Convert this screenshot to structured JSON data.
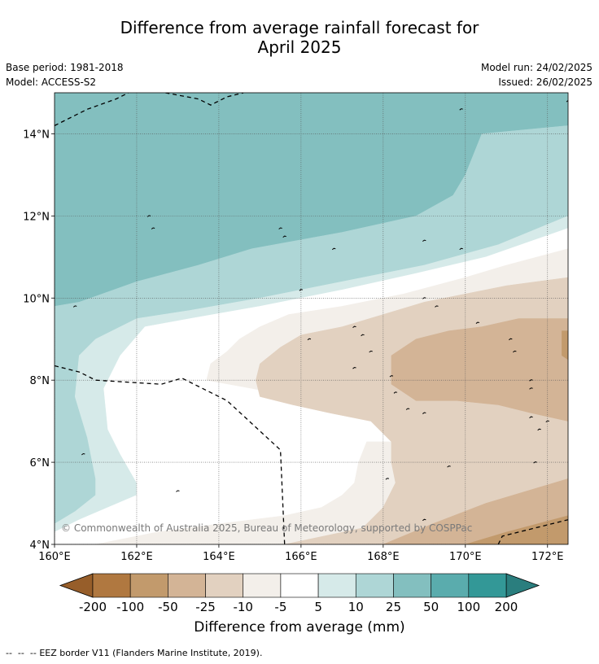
{
  "title_line1": "Difference from average rainfall forecast for",
  "title_line2": "April 2025",
  "base_period": "Base period: 1981-2018",
  "model": "Model: ACCESS-S2",
  "model_run": "Model run: 24/02/2025",
  "issued": "Issued: 26/02/2025",
  "copyright": "© Commonwealth of Australia 2025, Bureau of Meteorology, supported by COSPPac",
  "colorbar_title": "Difference from average (mm)",
  "footnote_dashes": "--  --  --",
  "footnote": "EEZ border V11 (Flanders Marine Institute, 2019).",
  "colors": {
    "lt_neg200": "#975e2a",
    "neg200_neg100": "#b07840",
    "neg100_neg50": "#c29a6c",
    "neg50_neg25": "#d3b496",
    "neg25_neg10": "#e2d1c0",
    "neg10_neg5": "#f3efea",
    "neg5_5": "#ffffff",
    "p5_10": "#d6eae9",
    "p10_25": "#aed6d6",
    "p25_50": "#83bfbf",
    "p50_100": "#5aacad",
    "p100_200": "#339897",
    "gt_200": "#2a7e7e"
  },
  "chart_data": {
    "type": "heatmap",
    "title": "Difference from average rainfall forecast for April 2025",
    "xlabel": "",
    "ylabel": "",
    "x_range": [
      160,
      172.5
    ],
    "y_range": [
      4,
      15
    ],
    "x_ticks": [
      160,
      162,
      164,
      166,
      168,
      170,
      172
    ],
    "x_tick_labels": [
      "160°E",
      "162°E",
      "164°E",
      "166°E",
      "168°E",
      "170°E",
      "172°E"
    ],
    "y_ticks": [
      4,
      6,
      8,
      10,
      12,
      14
    ],
    "y_tick_labels": [
      "4°N",
      "6°N",
      "8°N",
      "10°N",
      "12°N",
      "14°N"
    ],
    "grid": true,
    "colorbar": {
      "unit": "mm",
      "boundaries": [
        -200,
        -100,
        -50,
        -25,
        -10,
        -5,
        5,
        10,
        25,
        50,
        100,
        200
      ],
      "tick_labels": [
        "-200",
        "-100",
        "-50",
        "-25",
        "-10",
        "-5",
        "5",
        "10",
        "25",
        "50",
        "100",
        "200"
      ],
      "extend": "both"
    },
    "regions": [
      {
        "range": "25 to 50",
        "color_key": "p25_50",
        "points": [
          [
            160,
            15
          ],
          [
            172.5,
            15
          ],
          [
            172.5,
            14.2
          ],
          [
            170.4,
            14.0
          ],
          [
            170.0,
            13.0
          ],
          [
            169.7,
            12.5
          ],
          [
            168.8,
            12.0
          ],
          [
            167.0,
            11.6
          ],
          [
            164.8,
            11.2
          ],
          [
            163.5,
            10.8
          ],
          [
            162.0,
            10.4
          ],
          [
            160.6,
            9.9
          ],
          [
            160,
            9.8
          ]
        ]
      },
      {
        "range": "10 to 25",
        "color_key": "p10_25",
        "points": [
          [
            160,
            9.8
          ],
          [
            160.6,
            9.9
          ],
          [
            162.0,
            10.4
          ],
          [
            163.5,
            10.8
          ],
          [
            164.8,
            11.2
          ],
          [
            167.0,
            11.6
          ],
          [
            168.8,
            12.0
          ],
          [
            169.7,
            12.5
          ],
          [
            170.0,
            13.0
          ],
          [
            170.4,
            14.0
          ],
          [
            172.5,
            14.2
          ],
          [
            172.5,
            12.0
          ],
          [
            170.8,
            11.3
          ],
          [
            169.0,
            10.8
          ],
          [
            167.0,
            10.4
          ],
          [
            165.0,
            10.0
          ],
          [
            163.3,
            9.7
          ],
          [
            162.0,
            9.5
          ],
          [
            161.0,
            9.0
          ],
          [
            160.6,
            8.6
          ],
          [
            160.5,
            7.6
          ],
          [
            160.8,
            6.6
          ],
          [
            161.0,
            5.6
          ],
          [
            161.0,
            5.2
          ],
          [
            160.5,
            4.8
          ],
          [
            160,
            4.5
          ]
        ]
      },
      {
        "range": "5 to 10",
        "color_key": "p5_10",
        "points": [
          [
            160,
            4.5
          ],
          [
            160.5,
            4.8
          ],
          [
            161.0,
            5.2
          ],
          [
            161.0,
            5.6
          ],
          [
            160.8,
            6.6
          ],
          [
            160.5,
            7.6
          ],
          [
            160.6,
            8.6
          ],
          [
            161.0,
            9.0
          ],
          [
            162.0,
            9.5
          ],
          [
            163.3,
            9.7
          ],
          [
            165.0,
            10.0
          ],
          [
            167.0,
            10.4
          ],
          [
            169.0,
            10.8
          ],
          [
            170.8,
            11.3
          ],
          [
            172.5,
            12.0
          ],
          [
            172.5,
            11.7
          ],
          [
            170.5,
            11.0
          ],
          [
            168.8,
            10.6
          ],
          [
            167.0,
            10.2
          ],
          [
            165.0,
            9.8
          ],
          [
            163.3,
            9.5
          ],
          [
            162.2,
            9.3
          ],
          [
            161.6,
            8.6
          ],
          [
            161.2,
            7.8
          ],
          [
            161.3,
            6.8
          ],
          [
            161.6,
            6.2
          ],
          [
            162.0,
            5.5
          ],
          [
            162.0,
            5.2
          ],
          [
            161.3,
            4.9
          ],
          [
            160.6,
            4.6
          ],
          [
            160,
            4.3
          ]
        ]
      },
      {
        "range": "-5 to 5",
        "color_key": "neg5_5",
        "points": [
          [
            160,
            4.3
          ],
          [
            160.6,
            4.6
          ],
          [
            161.3,
            4.9
          ],
          [
            162.0,
            5.2
          ],
          [
            162.0,
            5.5
          ],
          [
            161.6,
            6.2
          ],
          [
            161.3,
            6.8
          ],
          [
            161.2,
            7.8
          ],
          [
            161.6,
            8.6
          ],
          [
            162.2,
            9.3
          ],
          [
            163.3,
            9.5
          ],
          [
            165.0,
            9.8
          ],
          [
            167.0,
            10.2
          ],
          [
            168.8,
            10.6
          ],
          [
            170.5,
            11.0
          ],
          [
            172.5,
            11.7
          ],
          [
            172.5,
            4
          ],
          [
            160,
            4
          ]
        ]
      },
      {
        "range": "-10 to -5",
        "color_key": "neg10_neg5",
        "points": [
          [
            161.0,
            4
          ],
          [
            162.5,
            4.3
          ],
          [
            164.0,
            4.5
          ],
          [
            165.6,
            4.7
          ],
          [
            166.5,
            4.9
          ],
          [
            167.0,
            5.2
          ],
          [
            167.3,
            5.5
          ],
          [
            167.4,
            6.0
          ],
          [
            167.6,
            6.5
          ],
          [
            168.2,
            6.5
          ],
          [
            168.3,
            6.8
          ],
          [
            167.7,
            7.1
          ],
          [
            166.6,
            7.4
          ],
          [
            165.8,
            7.6
          ],
          [
            164.8,
            7.8
          ],
          [
            163.7,
            8.0
          ],
          [
            163.8,
            8.4
          ],
          [
            164.2,
            8.7
          ],
          [
            164.5,
            9.0
          ],
          [
            165.0,
            9.3
          ],
          [
            165.7,
            9.6
          ],
          [
            167.0,
            9.8
          ],
          [
            168.5,
            10.1
          ],
          [
            170.0,
            10.5
          ],
          [
            171.0,
            10.8
          ],
          [
            172.5,
            11.2
          ],
          [
            172.5,
            4
          ]
        ]
      },
      {
        "range": "-25 to -10",
        "color_key": "neg25_neg10",
        "points": [
          [
            165.6,
            4
          ],
          [
            167.5,
            4.4
          ],
          [
            168.0,
            4.9
          ],
          [
            168.3,
            5.5
          ],
          [
            168.2,
            6.0
          ],
          [
            168.2,
            6.5
          ],
          [
            167.7,
            7.0
          ],
          [
            166.7,
            7.2
          ],
          [
            165.8,
            7.4
          ],
          [
            165.0,
            7.6
          ],
          [
            164.9,
            8.0
          ],
          [
            165.0,
            8.4
          ],
          [
            165.5,
            8.8
          ],
          [
            166.0,
            9.1
          ],
          [
            167.0,
            9.3
          ],
          [
            168.0,
            9.6
          ],
          [
            169.0,
            9.9
          ],
          [
            170.0,
            10.1
          ],
          [
            171.0,
            10.3
          ],
          [
            172.5,
            10.5
          ],
          [
            172.5,
            4
          ]
        ]
      },
      {
        "range": "-50 to -25",
        "color_key": "neg50_neg25",
        "points": [
          [
            168.0,
            4
          ],
          [
            169.2,
            4.5
          ],
          [
            170.5,
            5.0
          ],
          [
            171.5,
            5.3
          ],
          [
            172.5,
            5.6
          ],
          [
            172.5,
            7.0
          ],
          [
            171.6,
            7.2
          ],
          [
            170.8,
            7.4
          ],
          [
            169.8,
            7.5
          ],
          [
            168.8,
            7.5
          ],
          [
            168.2,
            7.9
          ],
          [
            168.2,
            8.6
          ],
          [
            168.8,
            9.0
          ],
          [
            169.6,
            9.2
          ],
          [
            170.4,
            9.3
          ],
          [
            171.3,
            9.5
          ],
          [
            172.5,
            9.5
          ],
          [
            172.5,
            4
          ]
        ]
      },
      {
        "range": "-100 to -50",
        "color_key": "neg100_neg50",
        "points": [
          [
            170.0,
            4
          ],
          [
            171.0,
            4.3
          ],
          [
            172.5,
            4.7
          ],
          [
            172.5,
            4
          ]
        ]
      },
      {
        "range": "-100 to -50",
        "color_key": "neg100_neg50",
        "points": [
          [
            172.35,
            9.2
          ],
          [
            172.5,
            9.2
          ],
          [
            172.5,
            8.5
          ],
          [
            172.35,
            8.6
          ]
        ]
      }
    ],
    "eez_border": [
      [
        [
          160,
          14.2
        ],
        [
          160.8,
          14.6
        ],
        [
          161.5,
          14.85
        ],
        [
          161.8,
          15
        ]
      ],
      [
        [
          162.7,
          15
        ],
        [
          163.5,
          14.85
        ],
        [
          163.8,
          14.7
        ],
        [
          164.2,
          14.9
        ],
        [
          164.6,
          15
        ]
      ],
      [
        [
          160,
          8.35
        ],
        [
          160.6,
          8.2
        ],
        [
          161.0,
          8.0
        ],
        [
          162.6,
          7.9
        ],
        [
          163.1,
          8.05
        ],
        [
          164.2,
          7.5
        ],
        [
          165.5,
          6.3
        ],
        [
          165.6,
          4
        ]
      ],
      [
        [
          170.8,
          4
        ],
        [
          170.9,
          4.2
        ],
        [
          172.5,
          4.6
        ]
      ]
    ]
  }
}
